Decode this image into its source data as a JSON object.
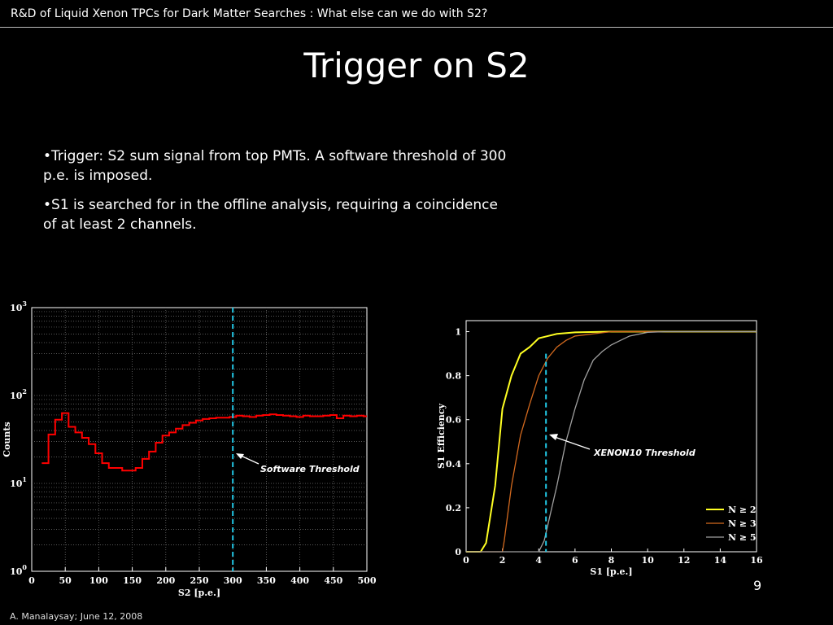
{
  "header": {
    "text": "R&D of Liquid Xenon TPCs for Dark Matter Searches : What else can we do with S2?"
  },
  "title": "Trigger on S2",
  "bullets": [
    "•Trigger: S2 sum signal from top PMTs.  A software threshold of 300 p.e. is imposed.",
    "•S1 is searched for in the offline analysis, requiring a coincidence of at least 2 channels."
  ],
  "page_number": "9",
  "footer": "A. Manalaysay; June 12, 2008",
  "colors": {
    "hist": "#ff0000",
    "threshold_line": "#22c8e6",
    "n2": "#ffff22",
    "n3": "#d2691e",
    "n5": "#a0a0a0"
  },
  "chart_data": [
    {
      "type": "line",
      "xlabel": "S2 [p.e.]",
      "ylabel": "Counts",
      "xlim": [
        0,
        500
      ],
      "ylim": [
        1,
        1000
      ],
      "yscale": "log",
      "grid": true,
      "x_ticks": [
        "0",
        "50",
        "100",
        "150",
        "200",
        "250",
        "300",
        "350",
        "400",
        "450",
        "500"
      ],
      "y_ticks": [
        {
          "base": "10",
          "exp": "0"
        },
        {
          "base": "10",
          "exp": "1"
        },
        {
          "base": "10",
          "exp": "2"
        },
        {
          "base": "10",
          "exp": "3"
        }
      ],
      "threshold": {
        "x": 300,
        "label": "Software Threshold"
      },
      "bins": {
        "edges": [
          15,
          25,
          35,
          45,
          55,
          65,
          75,
          85,
          95,
          105,
          115,
          125,
          135,
          145,
          155,
          165,
          175,
          185,
          195,
          205,
          215,
          225,
          235,
          245,
          255,
          265,
          275,
          285,
          295,
          305,
          315,
          325,
          335,
          345,
          355,
          365,
          375,
          385,
          395,
          405,
          415,
          425,
          435,
          445,
          455,
          465,
          475,
          485,
          495,
          500
        ],
        "values": [
          17,
          36,
          53,
          63,
          44,
          38,
          33,
          28,
          22,
          17,
          15,
          15,
          14,
          14,
          15,
          19,
          23,
          29,
          35,
          38,
          42,
          46,
          49,
          52,
          54,
          55,
          56,
          56,
          57,
          59,
          58,
          57,
          59,
          60,
          61,
          60,
          59,
          58,
          57,
          59,
          58,
          58,
          59,
          60,
          55,
          59,
          58,
          59,
          58
        ]
      }
    },
    {
      "type": "line",
      "xlabel": "S1 [p.e.]",
      "ylabel": "S1 Efficiency",
      "xlim": [
        0,
        16
      ],
      "ylim": [
        0,
        1.05
      ],
      "grid": false,
      "x_ticks": [
        "0",
        "2",
        "4",
        "6",
        "8",
        "10",
        "12",
        "14",
        "16"
      ],
      "y_ticks": [
        "0",
        "0.2",
        "0.4",
        "0.6",
        "0.8",
        "1"
      ],
      "threshold": {
        "x": 4.4,
        "label": "XENON10 Threshold"
      },
      "legend_position": "bottom-right",
      "series": [
        {
          "name": "N ≥ 2",
          "x": [
            0,
            0.8,
            1.1,
            1.6,
            2.0,
            2.5,
            3.0,
            3.5,
            4.0,
            4.5,
            5.0,
            6.0,
            8.0,
            16.0
          ],
          "y": [
            0,
            0,
            0.04,
            0.3,
            0.65,
            0.8,
            0.9,
            0.93,
            0.97,
            0.98,
            0.99,
            0.997,
            1.0,
            1.0
          ]
        },
        {
          "name": "N ≥ 3",
          "x": [
            0,
            2.0,
            2.1,
            2.5,
            3.0,
            3.5,
            4.0,
            4.5,
            5.0,
            5.5,
            6.0,
            7.0,
            8.0,
            16.0
          ],
          "y": [
            0,
            0,
            0.05,
            0.3,
            0.53,
            0.67,
            0.8,
            0.88,
            0.93,
            0.96,
            0.98,
            0.99,
            1.0,
            1.0
          ]
        },
        {
          "name": "N ≥ 5",
          "x": [
            0,
            4.0,
            4.3,
            5.0,
            5.5,
            6.0,
            6.5,
            7.0,
            7.5,
            8.0,
            8.5,
            9.0,
            10.0,
            11.0,
            16.0
          ],
          "y": [
            0,
            0,
            0.05,
            0.3,
            0.5,
            0.65,
            0.78,
            0.87,
            0.91,
            0.94,
            0.96,
            0.98,
            0.997,
            1.0,
            1.0
          ]
        }
      ]
    }
  ]
}
